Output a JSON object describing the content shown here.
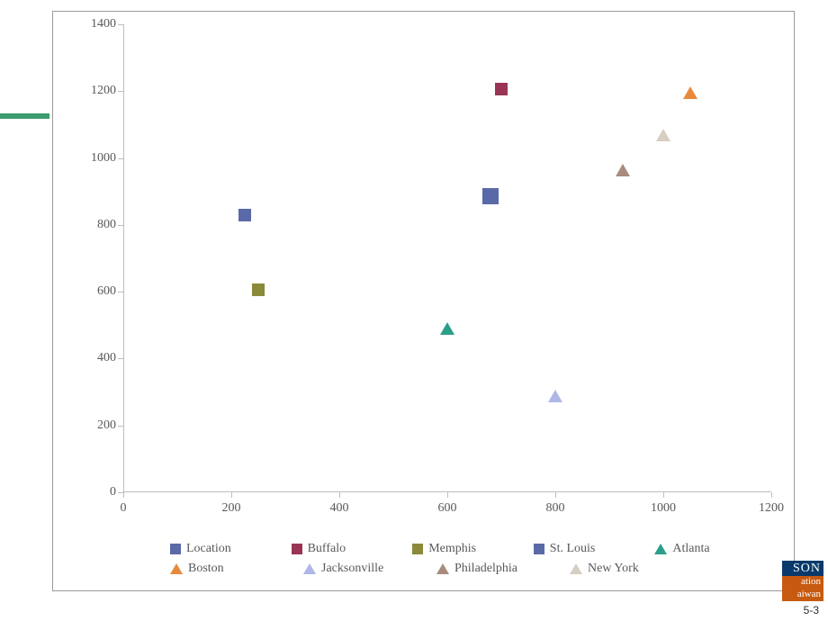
{
  "decor": {
    "line_color": "#3a9b6c"
  },
  "chart": {
    "type": "scatter",
    "xlim": [
      0,
      1200
    ],
    "ylim": [
      0,
      1400
    ],
    "xtick_step": 200,
    "ytick_step": 200,
    "axis_color": "#bdbdbd",
    "tick_label_color": "#595959",
    "tick_label_fontsize": 14,
    "background_color": "#ffffff",
    "border_color": "#9a9a9a",
    "x_ticks": [
      0,
      200,
      400,
      600,
      800,
      1000,
      1200
    ],
    "y_ticks": [
      0,
      200,
      400,
      600,
      800,
      1000,
      1200,
      1400
    ],
    "series": [
      {
        "name": "Location",
        "marker": "square",
        "size": "big",
        "color": "#5a6aa8",
        "x": 680,
        "y": 885
      },
      {
        "name": "Buffalo",
        "marker": "square",
        "size": "normal",
        "color": "#9a3454",
        "x": 700,
        "y": 1205
      },
      {
        "name": "Memphis",
        "marker": "square",
        "size": "normal",
        "color": "#8a8a3a",
        "x": 250,
        "y": 605
      },
      {
        "name": "St. Louis",
        "marker": "square",
        "size": "normal",
        "color": "#5a6aa8",
        "x": 225,
        "y": 830
      },
      {
        "name": "Atlanta",
        "marker": "triangle",
        "size": "normal",
        "color": "#2b9e8a",
        "x": 600,
        "y": 500
      },
      {
        "name": "Boston",
        "marker": "triangle",
        "size": "normal",
        "color": "#e88a3e",
        "x": 1050,
        "y": 1205
      },
      {
        "name": "Jacksonville",
        "marker": "triangle",
        "size": "normal",
        "color": "#aeb7e6",
        "x": 800,
        "y": 300
      },
      {
        "name": "Philadelphia",
        "marker": "triangle",
        "size": "normal",
        "color": "#a98b7e",
        "x": 925,
        "y": 975
      },
      {
        "name": "New York",
        "marker": "triangle",
        "size": "normal",
        "color": "#d6cfc2",
        "x": 1000,
        "y": 1080
      }
    ],
    "legend_rows": [
      [
        0,
        1,
        2,
        3,
        4
      ],
      [
        5,
        6,
        7,
        8
      ]
    ]
  },
  "badge": {
    "line1": "SON",
    "line2": "ation",
    "line3": "aiwan"
  },
  "page_number": "5-3"
}
